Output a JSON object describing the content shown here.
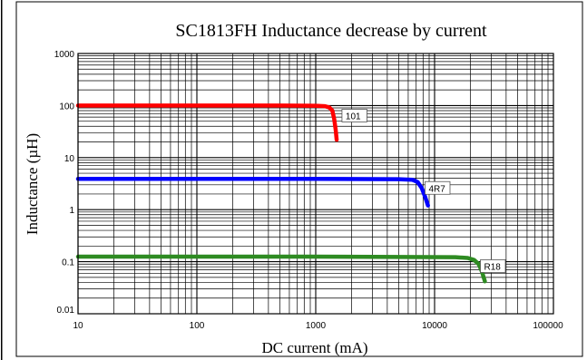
{
  "chart_data": {
    "type": "line",
    "title": "SC1813FH Inductance decrease by current",
    "xlabel": "DC current (mA)",
    "ylabel": "Inductance (µH)",
    "x_scale": "log",
    "y_scale": "log",
    "xlim": [
      10,
      100000
    ],
    "ylim": [
      0.01,
      1000
    ],
    "x_ticks": [
      "10",
      "100",
      "1000",
      "10000",
      "100000"
    ],
    "y_ticks": [
      "1000",
      "100",
      "10",
      "1",
      "0.1",
      "0.01"
    ],
    "grid": true,
    "series": [
      {
        "name": "101",
        "color": "#ff0000",
        "points": [
          [
            10,
            100
          ],
          [
            500,
            100
          ],
          [
            1000,
            99
          ],
          [
            1200,
            97
          ],
          [
            1300,
            92
          ],
          [
            1380,
            80
          ],
          [
            1430,
            55
          ],
          [
            1470,
            35
          ],
          [
            1500,
            22
          ]
        ]
      },
      {
        "name": "4R7",
        "color": "#0000ff",
        "points": [
          [
            10,
            3.9
          ],
          [
            1000,
            3.9
          ],
          [
            5000,
            3.85
          ],
          [
            6500,
            3.75
          ],
          [
            7200,
            3.4
          ],
          [
            7800,
            2.6
          ],
          [
            8300,
            1.8
          ],
          [
            8800,
            1.2
          ]
        ]
      },
      {
        "name": "R18",
        "color": "#2e8b22",
        "points": [
          [
            10,
            0.125
          ],
          [
            1000,
            0.125
          ],
          [
            15000,
            0.122
          ],
          [
            19000,
            0.118
          ],
          [
            21500,
            0.108
          ],
          [
            23500,
            0.09
          ],
          [
            25000,
            0.065
          ],
          [
            26500,
            0.042
          ]
        ]
      }
    ]
  }
}
